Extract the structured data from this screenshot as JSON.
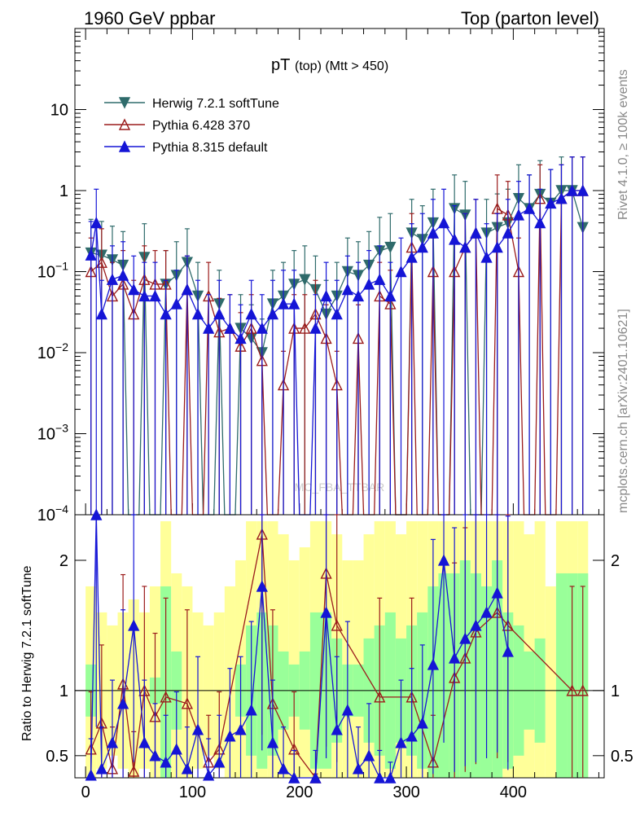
{
  "header": {
    "left": "1960 GeV ppbar",
    "right": "Top (parton level)"
  },
  "side_labels": {
    "rivet": "Rivet 4.1.0, ≥ 100k events",
    "mcplots": "mcplots.cern.ch [arXiv:2401.10621]"
  },
  "watermark": "MC_FBA_TTBAR",
  "chart_data": {
    "type": "line",
    "title": "pT",
    "title_sub": "(top) (Mtt > 450)",
    "xlabel": "",
    "ylabel_ratio": "Ratio to Herwig 7.2.1 softTune",
    "xlim": [
      -10,
      485
    ],
    "ylim_main": [
      0.0001,
      100
    ],
    "ylim_ratio": [
      0.33,
      2.35
    ],
    "y_scale_main": "log",
    "x_ticks": [
      0,
      100,
      200,
      300,
      400
    ],
    "x_tick_labels": [
      "0",
      "100",
      "200",
      "300",
      "400"
    ],
    "y_ticks_main": [
      "10",
      "1",
      "10^-1",
      "10^-2",
      "10^-3",
      "10^-4"
    ],
    "y_ticks_ratio": [
      "2",
      "1",
      "0.5"
    ],
    "legend_position": "top-left",
    "series": [
      {
        "name": "Herwig 7.2.1 softTune",
        "color": "#2f6b6b",
        "marker": "triangle-down",
        "x": [
          5,
          15,
          25,
          35,
          55,
          75,
          85,
          95,
          105,
          125,
          145,
          155,
          165,
          175,
          185,
          195,
          205,
          215,
          225,
          235,
          245,
          255,
          265,
          275,
          285,
          305,
          315,
          325,
          345,
          355,
          375,
          385,
          395,
          405,
          415,
          425,
          435,
          445,
          455,
          465
        ],
        "y": [
          0.17,
          0.16,
          0.14,
          0.12,
          0.15,
          0.07,
          0.09,
          0.13,
          0.05,
          0.04,
          0.02,
          0.015,
          0.01,
          0.04,
          0.05,
          0.07,
          0.08,
          0.06,
          0.03,
          0.05,
          0.1,
          0.09,
          0.12,
          0.18,
          0.2,
          0.3,
          0.25,
          0.4,
          0.6,
          0.5,
          0.3,
          0.35,
          0.4,
          0.8,
          0.6,
          0.9,
          0.7,
          1.0,
          1.0,
          0.35
        ]
      },
      {
        "name": "Pythia 6.428 370",
        "color": "#9b1c1c",
        "marker": "triangle-up-open",
        "x": [
          5,
          15,
          25,
          35,
          45,
          55,
          65,
          75,
          95,
          115,
          125,
          135,
          145,
          155,
          165,
          185,
          195,
          205,
          215,
          225,
          235,
          255,
          275,
          285,
          305,
          325,
          345,
          355,
          365,
          385,
          395,
          405,
          425,
          445,
          455,
          465
        ],
        "y": [
          0.1,
          0.13,
          0.05,
          0.07,
          0.03,
          0.08,
          0.07,
          0.07,
          0.06,
          0.05,
          0.018,
          0.02,
          0.012,
          0.02,
          0.008,
          0.004,
          0.02,
          0.02,
          0.03,
          0.015,
          0.004,
          0.015,
          0.05,
          0.04,
          0.2,
          0.1,
          0.1,
          0.2,
          0.3,
          0.6,
          0.5,
          0.1,
          0.8,
          0.8,
          1.0,
          1.0
        ]
      },
      {
        "name": "Pythia 8.315 default",
        "color": "#1515d6",
        "marker": "triangle-up",
        "x": [
          5,
          10,
          15,
          25,
          35,
          45,
          55,
          65,
          75,
          85,
          95,
          105,
          115,
          125,
          135,
          145,
          155,
          165,
          175,
          185,
          195,
          215,
          225,
          235,
          245,
          255,
          265,
          275,
          285,
          295,
          305,
          315,
          325,
          335,
          345,
          355,
          365,
          375,
          385,
          395,
          405,
          415,
          425,
          435,
          445,
          455,
          465
        ],
        "y": [
          0.16,
          0.4,
          0.03,
          0.08,
          0.09,
          0.06,
          0.05,
          0.05,
          0.03,
          0.04,
          0.06,
          0.03,
          0.02,
          0.03,
          0.02,
          0.015,
          0.03,
          0.02,
          0.03,
          0.04,
          0.04,
          0.02,
          0.05,
          0.03,
          0.06,
          0.05,
          0.07,
          0.08,
          0.05,
          0.1,
          0.15,
          0.2,
          0.3,
          0.4,
          0.25,
          0.2,
          0.3,
          0.15,
          0.2,
          0.3,
          0.5,
          0.6,
          0.4,
          0.7,
          0.8,
          1.0,
          1.0
        ]
      }
    ],
    "ratio_series": [
      {
        "name": "Pythia 6.428 370",
        "x": [
          5,
          15,
          25,
          35,
          45,
          55,
          65,
          75,
          95,
          115,
          125,
          165,
          175,
          195,
          215,
          225,
          235,
          275,
          305,
          325,
          345,
          355,
          365,
          385,
          395,
          455,
          465
        ],
        "y": [
          0.55,
          0.75,
          0.4,
          1.05,
          0.38,
          1.0,
          0.8,
          0.95,
          0.9,
          0.45,
          0.55,
          2.2,
          0.9,
          0.55,
          0.2,
          1.9,
          1.5,
          0.95,
          0.95,
          0.45,
          1.1,
          1.25,
          1.45,
          1.6,
          1.5,
          1.0,
          1.0
        ]
      },
      {
        "name": "Pythia 8.315 default",
        "x": [
          5,
          10,
          15,
          25,
          35,
          45,
          55,
          65,
          75,
          85,
          95,
          105,
          115,
          125,
          135,
          145,
          155,
          165,
          175,
          185,
          195,
          215,
          225,
          235,
          245,
          255,
          265,
          275,
          285,
          295,
          305,
          315,
          325,
          335,
          345,
          355,
          365,
          375,
          385,
          395
        ],
        "y": [
          0.35,
          2.4,
          0.4,
          0.6,
          0.9,
          1.5,
          0.6,
          0.5,
          0.45,
          0.55,
          0.4,
          0.7,
          0.35,
          0.45,
          0.65,
          0.7,
          0.85,
          1.8,
          0.6,
          0.4,
          0.3,
          0.3,
          1.6,
          0.7,
          0.85,
          0.4,
          0.5,
          0.3,
          0.25,
          0.6,
          0.65,
          0.75,
          1.2,
          2.0,
          1.25,
          1.4,
          1.5,
          1.6,
          1.75,
          1.3
        ]
      }
    ],
    "ratio_bands": {
      "x": [
        5,
        15,
        25,
        35,
        45,
        55,
        65,
        75,
        85,
        95,
        105,
        115,
        125,
        135,
        145,
        155,
        165,
        175,
        185,
        195,
        205,
        215,
        225,
        235,
        245,
        255,
        265,
        275,
        285,
        295,
        305,
        315,
        325,
        335,
        345,
        355,
        365,
        375,
        385,
        395,
        405,
        415,
        425,
        435,
        445,
        455,
        465
      ],
      "inner": [
        1.2,
        1.0,
        0.9,
        0.95,
        1.0,
        1.0,
        1.1,
        1.8,
        1.3,
        1.0,
        0.95,
        0.9,
        0.95,
        1.0,
        1.2,
        1.5,
        1.6,
        1.5,
        1.3,
        1.2,
        1.3,
        1.6,
        1.6,
        1.4,
        1.2,
        1.2,
        1.4,
        1.5,
        1.6,
        1.4,
        1.5,
        1.6,
        1.8,
        1.9,
        1.9,
        2.0,
        1.9,
        1.8,
        2.0,
        1.6,
        1.5,
        1.3,
        1.4,
        1.0,
        1.9,
        1.9,
        1.9
      ],
      "outer": [
        1.8,
        1.6,
        1.5,
        1.6,
        1.7,
        1.6,
        1.8,
        2.3,
        1.9,
        1.8,
        1.6,
        1.5,
        1.6,
        1.8,
        2.0,
        2.3,
        2.3,
        2.3,
        2.2,
        2.0,
        2.1,
        2.3,
        2.3,
        2.2,
        2.0,
        2.0,
        2.2,
        2.3,
        2.3,
        2.2,
        2.3,
        2.3,
        2.3,
        2.3,
        2.3,
        2.3,
        2.3,
        2.3,
        2.3,
        2.3,
        2.3,
        2.2,
        2.3,
        1.8,
        2.3,
        2.3,
        2.3
      ]
    }
  }
}
